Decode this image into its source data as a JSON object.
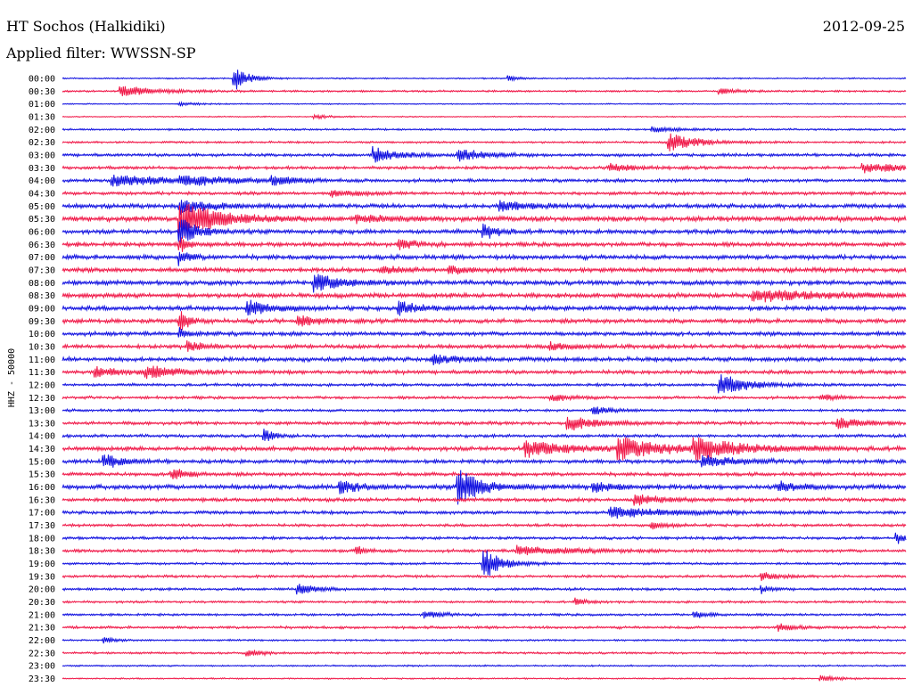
{
  "header": {
    "station": "HT Sochos (Halkidiki)",
    "date": "2012-09-25",
    "filter_label": "Applied filter: WWSSN-SP"
  },
  "chart_data": {
    "type": "line",
    "title": "HT Sochos (Halkidiki)",
    "ylabel": "HHZ - 50000",
    "xlabel": "",
    "colors": [
      "#1010e0",
      "#f01848"
    ],
    "traces": [
      {
        "label": "00:00",
        "events": [
          {
            "t": 0.205,
            "a": 14,
            "d": 0.015
          },
          {
            "t": 0.53,
            "a": 3,
            "d": 0.01
          }
        ],
        "noise": 0.6
      },
      {
        "label": "00:30",
        "events": [
          {
            "t": 0.07,
            "a": 6,
            "d": 0.04
          },
          {
            "t": 0.78,
            "a": 3,
            "d": 0.02
          }
        ],
        "noise": 0.8
      },
      {
        "label": "01:00",
        "events": [
          {
            "t": 0.14,
            "a": 2,
            "d": 0.02
          }
        ],
        "noise": 0.5
      },
      {
        "label": "01:30",
        "events": [
          {
            "t": 0.3,
            "a": 2,
            "d": 0.02
          }
        ],
        "noise": 0.5
      },
      {
        "label": "02:00",
        "events": [
          {
            "t": 0.7,
            "a": 3,
            "d": 0.03
          }
        ],
        "noise": 0.8
      },
      {
        "label": "02:30",
        "events": [
          {
            "t": 0.72,
            "a": 10,
            "d": 0.03
          }
        ],
        "noise": 0.9
      },
      {
        "label": "03:00",
        "events": [
          {
            "t": 0.37,
            "a": 9,
            "d": 0.025
          },
          {
            "t": 0.47,
            "a": 8,
            "d": 0.025
          }
        ],
        "noise": 1.3
      },
      {
        "label": "03:30",
        "events": [
          {
            "t": 0.65,
            "a": 6,
            "d": 0.02
          },
          {
            "t": 0.95,
            "a": 5,
            "d": 0.05
          }
        ],
        "noise": 1.3
      },
      {
        "label": "04:00",
        "events": [
          {
            "t": 0.06,
            "a": 7,
            "d": 0.06
          },
          {
            "t": 0.14,
            "a": 5,
            "d": 0.05
          },
          {
            "t": 0.25,
            "a": 6,
            "d": 0.02
          }
        ],
        "noise": 1.4
      },
      {
        "label": "04:30",
        "events": [
          {
            "t": 0.32,
            "a": 3,
            "d": 0.03
          }
        ],
        "noise": 1.4
      },
      {
        "label": "05:00",
        "events": [
          {
            "t": 0.14,
            "a": 9,
            "d": 0.03
          },
          {
            "t": 0.52,
            "a": 6,
            "d": 0.03
          }
        ],
        "noise": 1.8
      },
      {
        "label": "05:30",
        "events": [
          {
            "t": 0.14,
            "a": 22,
            "d": 0.04
          },
          {
            "t": 0.35,
            "a": 4,
            "d": 0.04
          }
        ],
        "noise": 2.2
      },
      {
        "label": "06:00",
        "events": [
          {
            "t": 0.14,
            "a": 16,
            "d": 0.02
          },
          {
            "t": 0.5,
            "a": 9,
            "d": 0.015
          }
        ],
        "noise": 1.8
      },
      {
        "label": "06:30",
        "events": [
          {
            "t": 0.14,
            "a": 9,
            "d": 0.01
          },
          {
            "t": 0.4,
            "a": 5,
            "d": 0.02
          }
        ],
        "noise": 1.8
      },
      {
        "label": "07:00",
        "events": [
          {
            "t": 0.14,
            "a": 8,
            "d": 0.01
          }
        ],
        "noise": 1.9
      },
      {
        "label": "07:30",
        "events": [
          {
            "t": 0.38,
            "a": 5,
            "d": 0.02
          },
          {
            "t": 0.46,
            "a": 4,
            "d": 0.02
          }
        ],
        "noise": 1.9
      },
      {
        "label": "08:00",
        "events": [
          {
            "t": 0.3,
            "a": 10,
            "d": 0.03
          }
        ],
        "noise": 1.9
      },
      {
        "label": "08:30",
        "events": [
          {
            "t": 0.82,
            "a": 6,
            "d": 0.08
          }
        ],
        "noise": 2.0
      },
      {
        "label": "09:00",
        "events": [
          {
            "t": 0.22,
            "a": 9,
            "d": 0.025
          },
          {
            "t": 0.4,
            "a": 7,
            "d": 0.02
          }
        ],
        "noise": 1.9
      },
      {
        "label": "09:30",
        "events": [
          {
            "t": 0.14,
            "a": 12,
            "d": 0.01
          },
          {
            "t": 0.28,
            "a": 6,
            "d": 0.02
          }
        ],
        "noise": 1.8
      },
      {
        "label": "10:00",
        "events": [
          {
            "t": 0.14,
            "a": 6,
            "d": 0.01
          }
        ],
        "noise": 1.7
      },
      {
        "label": "10:30",
        "events": [
          {
            "t": 0.15,
            "a": 5,
            "d": 0.02
          },
          {
            "t": 0.58,
            "a": 4,
            "d": 0.02
          }
        ],
        "noise": 1.7
      },
      {
        "label": "11:00",
        "events": [
          {
            "t": 0.44,
            "a": 5,
            "d": 0.03
          }
        ],
        "noise": 1.8
      },
      {
        "label": "11:30",
        "events": [
          {
            "t": 0.04,
            "a": 5,
            "d": 0.03
          },
          {
            "t": 0.1,
            "a": 7,
            "d": 0.03
          }
        ],
        "noise": 1.6
      },
      {
        "label": "12:00",
        "events": [
          {
            "t": 0.78,
            "a": 12,
            "d": 0.03
          }
        ],
        "noise": 1.2
      },
      {
        "label": "12:30",
        "events": [
          {
            "t": 0.58,
            "a": 4,
            "d": 0.02
          },
          {
            "t": 0.9,
            "a": 3,
            "d": 0.02
          }
        ],
        "noise": 1.2
      },
      {
        "label": "13:00",
        "events": [
          {
            "t": 0.63,
            "a": 4,
            "d": 0.02
          }
        ],
        "noise": 1.1
      },
      {
        "label": "13:30",
        "events": [
          {
            "t": 0.6,
            "a": 8,
            "d": 0.03
          },
          {
            "t": 0.92,
            "a": 6,
            "d": 0.03
          }
        ],
        "noise": 1.4
      },
      {
        "label": "14:00",
        "events": [
          {
            "t": 0.24,
            "a": 8,
            "d": 0.01
          }
        ],
        "noise": 1.3
      },
      {
        "label": "14:30",
        "events": [
          {
            "t": 0.55,
            "a": 9,
            "d": 0.05
          },
          {
            "t": 0.66,
            "a": 12,
            "d": 0.05
          },
          {
            "t": 0.75,
            "a": 10,
            "d": 0.06
          }
        ],
        "noise": 1.8
      },
      {
        "label": "15:00",
        "events": [
          {
            "t": 0.05,
            "a": 8,
            "d": 0.02
          },
          {
            "t": 0.76,
            "a": 6,
            "d": 0.04
          }
        ],
        "noise": 1.6
      },
      {
        "label": "15:30",
        "events": [
          {
            "t": 0.13,
            "a": 6,
            "d": 0.02
          }
        ],
        "noise": 1.5
      },
      {
        "label": "16:00",
        "events": [
          {
            "t": 0.33,
            "a": 7,
            "d": 0.02
          },
          {
            "t": 0.47,
            "a": 20,
            "d": 0.025
          },
          {
            "t": 0.63,
            "a": 5,
            "d": 0.03
          },
          {
            "t": 0.85,
            "a": 6,
            "d": 0.02
          }
        ],
        "noise": 2.0
      },
      {
        "label": "16:30",
        "events": [
          {
            "t": 0.68,
            "a": 6,
            "d": 0.03
          }
        ],
        "noise": 1.5
      },
      {
        "label": "17:00",
        "events": [
          {
            "t": 0.65,
            "a": 6,
            "d": 0.06
          }
        ],
        "noise": 1.4
      },
      {
        "label": "17:30",
        "events": [
          {
            "t": 0.7,
            "a": 3,
            "d": 0.02
          }
        ],
        "noise": 1.2
      },
      {
        "label": "18:00",
        "events": [
          {
            "t": 0.99,
            "a": 6,
            "d": 0.01
          }
        ],
        "noise": 1.2
      },
      {
        "label": "18:30",
        "events": [
          {
            "t": 0.35,
            "a": 5,
            "d": 0.01
          },
          {
            "t": 0.54,
            "a": 5,
            "d": 0.06
          }
        ],
        "noise": 1.3
      },
      {
        "label": "19:00",
        "events": [
          {
            "t": 0.5,
            "a": 18,
            "d": 0.02
          }
        ],
        "noise": 1.0
      },
      {
        "label": "19:30",
        "events": [
          {
            "t": 0.83,
            "a": 4,
            "d": 0.02
          }
        ],
        "noise": 1.1
      },
      {
        "label": "20:00",
        "events": [
          {
            "t": 0.28,
            "a": 6,
            "d": 0.02
          },
          {
            "t": 0.83,
            "a": 4,
            "d": 0.01
          }
        ],
        "noise": 1.1
      },
      {
        "label": "20:30",
        "events": [
          {
            "t": 0.61,
            "a": 4,
            "d": 0.01
          }
        ],
        "noise": 1.0
      },
      {
        "label": "21:00",
        "events": [
          {
            "t": 0.43,
            "a": 4,
            "d": 0.02
          },
          {
            "t": 0.75,
            "a": 3,
            "d": 0.02
          }
        ],
        "noise": 1.0
      },
      {
        "label": "21:30",
        "events": [
          {
            "t": 0.85,
            "a": 4,
            "d": 0.02
          }
        ],
        "noise": 1.1
      },
      {
        "label": "22:00",
        "events": [
          {
            "t": 0.05,
            "a": 3,
            "d": 0.01
          }
        ],
        "noise": 0.8
      },
      {
        "label": "22:30",
        "events": [
          {
            "t": 0.22,
            "a": 3,
            "d": 0.02
          }
        ],
        "noise": 0.9
      },
      {
        "label": "23:00",
        "events": [],
        "noise": 0.7
      },
      {
        "label": "23:30",
        "events": [
          {
            "t": 0.9,
            "a": 3,
            "d": 0.02
          }
        ],
        "noise": 0.6
      }
    ]
  }
}
